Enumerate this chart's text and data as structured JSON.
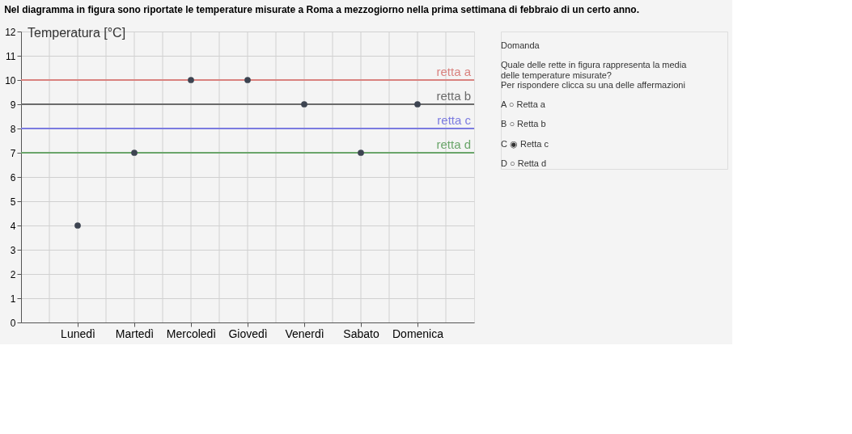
{
  "chart_data": {
    "type": "scatter",
    "title": "Nel diagramma in figura sono riportate le temperature misurate a Roma a mezzogiorno nella prima settimana di febbraio di un certo anno.",
    "ylabel": "Temperatura [°C]",
    "categories": [
      "Lunedì",
      "Martedì",
      "Mercoledì",
      "Giovedì",
      "Venerdì",
      "Sabato",
      "Domenica"
    ],
    "series": [
      {
        "color": "#3d4451",
        "values": [
          4,
          7,
          10,
          10,
          9,
          7,
          9
        ]
      }
    ],
    "ylim": [
      0,
      12
    ],
    "yticks": [
      0,
      1,
      2,
      3,
      4,
      5,
      6,
      7,
      8,
      9,
      10,
      11,
      12
    ],
    "grid": true,
    "marker": "circle",
    "legend": false,
    "ref_lines": [
      {
        "axis": "y",
        "value": 10,
        "label": "retta a",
        "color": "#d9827f"
      },
      {
        "axis": "y",
        "value": 9,
        "label": "retta b",
        "color": "#6b6b6b"
      },
      {
        "axis": "y",
        "value": 8,
        "label": "retta c",
        "color": "#7b7be0"
      },
      {
        "axis": "y",
        "value": 7,
        "label": "retta d",
        "color": "#6aa56a"
      }
    ],
    "annotations": [
      "Domanda",
      "Quale delle rette in figura rappresenta la media delle temperature misurate?",
      "Per rispondere clicca su una delle affermazioni",
      "A  ○ Retta a",
      "B  ○ Retta b",
      "C  ◉ Retta c",
      "D  ○ Retta d"
    ]
  }
}
